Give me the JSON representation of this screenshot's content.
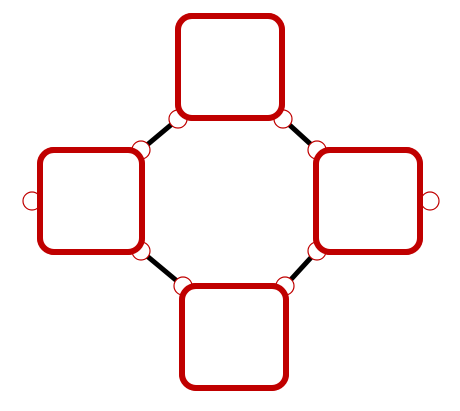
{
  "diagram": {
    "type": "ring-of-nodes",
    "colors": {
      "node_stroke": "#c00000",
      "node_fill": "#ffffff",
      "port_stroke": "#c00000",
      "port_fill": "#ffffff",
      "edge": "#000000",
      "background": "#ffffff"
    },
    "nodes": [
      {
        "id": "top",
        "label": ""
      },
      {
        "id": "right",
        "label": ""
      },
      {
        "id": "bottom",
        "label": ""
      },
      {
        "id": "left",
        "label": ""
      }
    ],
    "edges": [
      {
        "from": "top",
        "to": "right"
      },
      {
        "from": "right",
        "to": "bottom"
      },
      {
        "from": "bottom",
        "to": "left"
      },
      {
        "from": "left",
        "to": "top"
      }
    ],
    "dangling_ports": [
      "left",
      "right"
    ]
  }
}
